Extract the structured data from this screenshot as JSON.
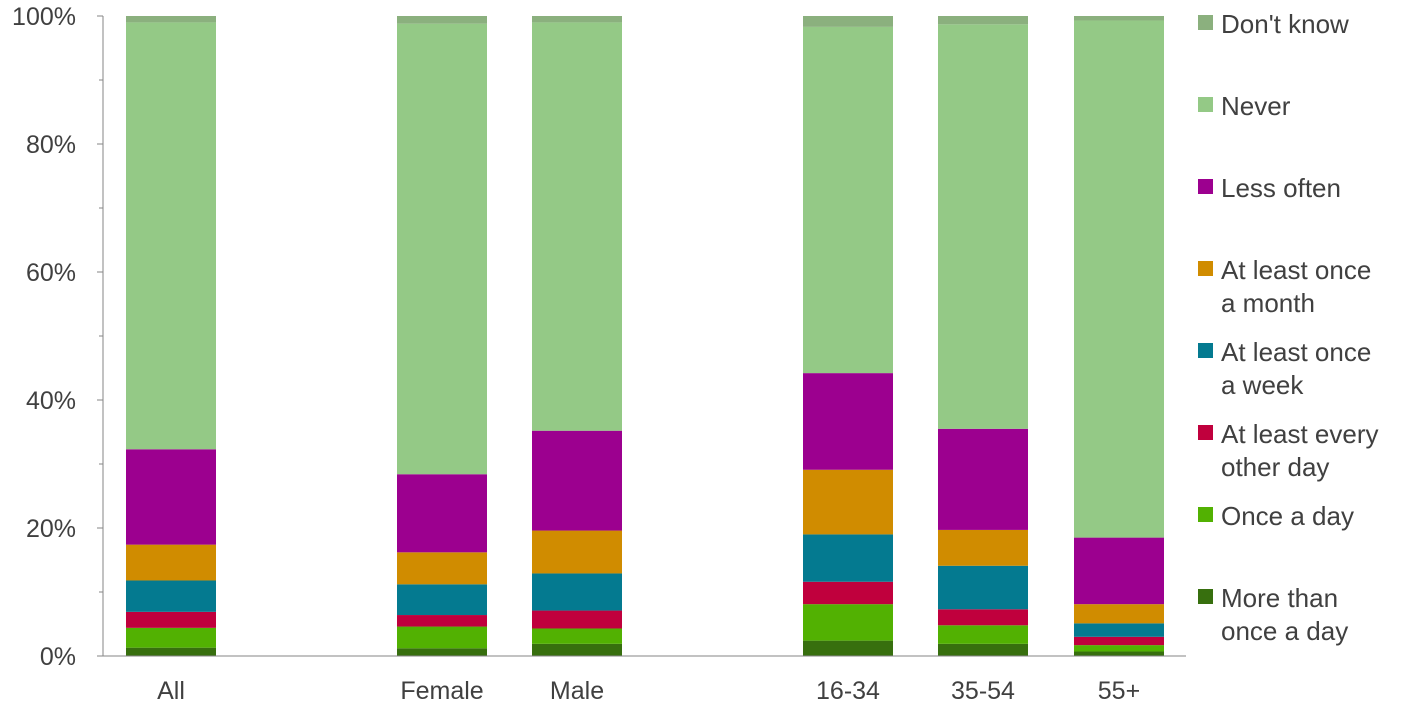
{
  "chart_data": {
    "type": "bar",
    "stacked": true,
    "normalized": true,
    "categories": [
      "All",
      "Female",
      "Male",
      "16-34",
      "35-54",
      "55+"
    ],
    "ylim": [
      0,
      100
    ],
    "yticks": [
      "0%",
      "20%",
      "40%",
      "60%",
      "80%",
      "100%"
    ],
    "grid": false,
    "legend_position": "right",
    "series": [
      {
        "name": "More than once a day",
        "color": "#376f0e",
        "values": [
          1.3,
          1.2,
          1.9,
          2.4,
          1.9,
          0.7
        ]
      },
      {
        "name": "Once a day",
        "color": "#52b102",
        "values": [
          3.1,
          3.4,
          2.4,
          5.7,
          2.9,
          1.0
        ]
      },
      {
        "name": "At least every other day",
        "color": "#c0003d",
        "values": [
          2.5,
          1.8,
          2.8,
          3.5,
          2.5,
          1.3
        ]
      },
      {
        "name": "At least once a week",
        "color": "#047a90",
        "values": [
          4.9,
          4.8,
          5.8,
          7.4,
          6.8,
          2.1
        ]
      },
      {
        "name": "At least once a month",
        "color": "#d08c00",
        "values": [
          5.6,
          5.0,
          6.7,
          10.1,
          5.6,
          3.0
        ]
      },
      {
        "name": "Less often",
        "color": "#9c008f",
        "values": [
          14.9,
          12.2,
          15.6,
          15.1,
          15.8,
          10.4
        ]
      },
      {
        "name": "Never",
        "color": "#94c986",
        "values": [
          66.7,
          70.4,
          63.8,
          54.1,
          63.2,
          80.8
        ]
      },
      {
        "name": "Don't know",
        "color": "#8bb07e",
        "values": [
          1.0,
          1.2,
          1.0,
          1.7,
          1.3,
          0.7
        ]
      }
    ],
    "legend_order": [
      "Don't know",
      "Never",
      "Less often",
      "At least once a month",
      "At least once a week",
      "At least every other day",
      "Once a day",
      "More than once a day"
    ],
    "legend_lines": {
      "Don't know": [
        "Don't know"
      ],
      "Never": [
        "Never"
      ],
      "Less often": [
        "Less often"
      ],
      "At least once a month": [
        "At least once",
        "a month"
      ],
      "At least once a week": [
        "At least once",
        "a week"
      ],
      "At least every other day": [
        "At least every",
        "other day"
      ],
      "Once a day": [
        "Once a day"
      ],
      "More than once a day": [
        "More than",
        "once a day"
      ]
    }
  }
}
